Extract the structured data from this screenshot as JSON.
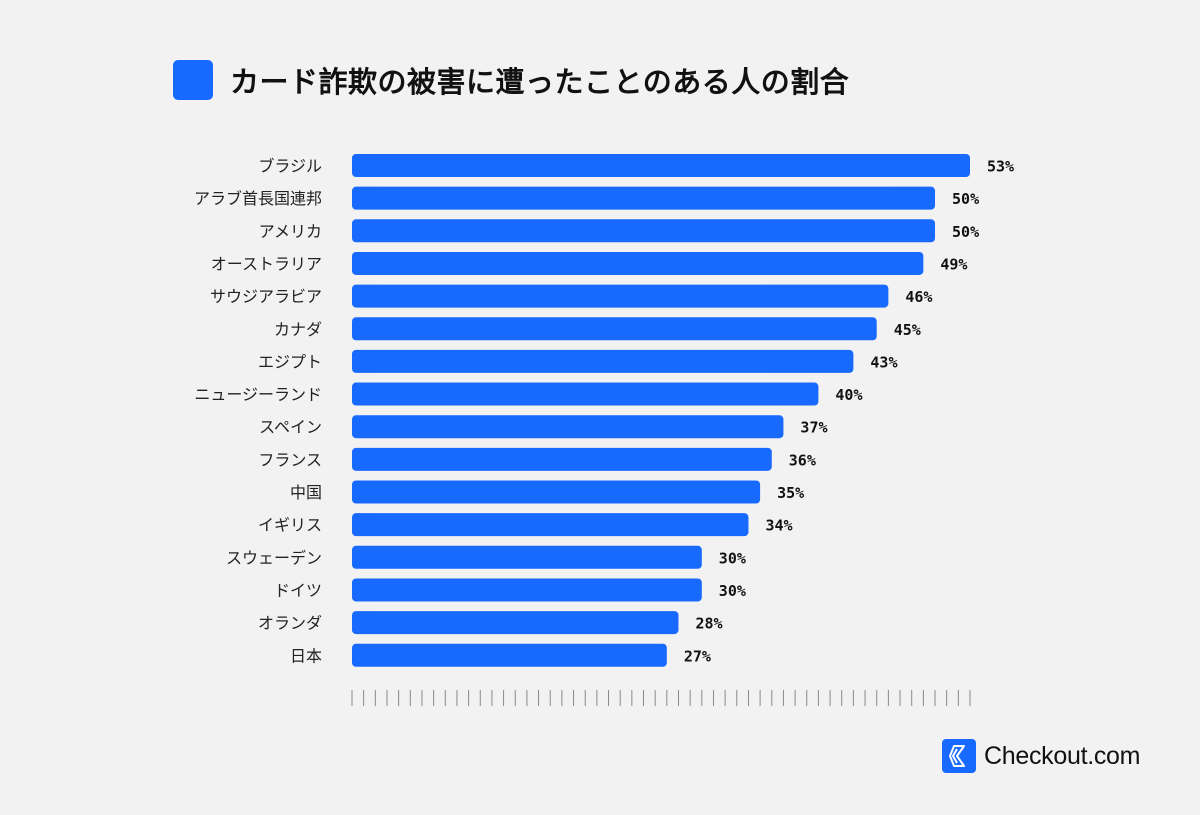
{
  "chart_data": {
    "type": "bar",
    "orientation": "horizontal",
    "title": "カード詐欺の被害に遭ったことのある人の割合",
    "categories": [
      "ブラジル",
      "アラブ首長国連邦",
      "アメリカ",
      "オーストラリア",
      "サウジアラビア",
      "カナダ",
      "エジプト",
      "ニュージーランド",
      "スペイン",
      "フランス",
      "中国",
      "イギリス",
      "スウェーデン",
      "ドイツ",
      "オランダ",
      "日本"
    ],
    "values": [
      53,
      50,
      50,
      49,
      46,
      45,
      43,
      40,
      37,
      36,
      35,
      34,
      30,
      30,
      28,
      27
    ],
    "value_suffix": "%",
    "xlim": [
      0,
      53
    ],
    "grid": false,
    "axis_ticks": "unlabeled tick marks along bottom",
    "bar_color": "#186aff",
    "background": "#f3f2f3"
  },
  "brand": {
    "name": "Checkout.com",
    "color": "#186aff",
    "icon": "checkout-logo-icon"
  }
}
